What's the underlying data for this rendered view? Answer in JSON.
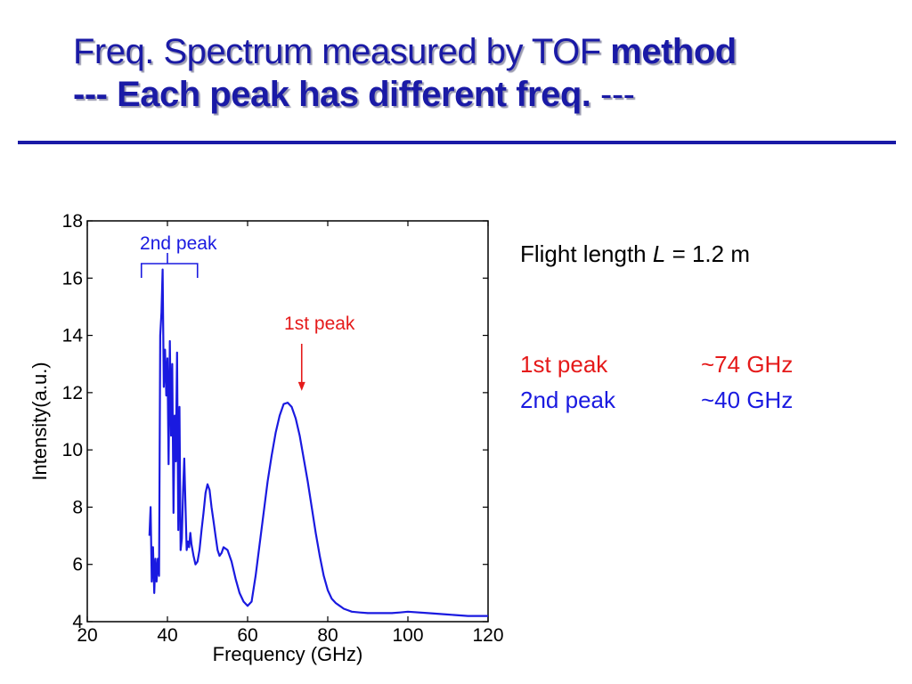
{
  "slide": {
    "title_line1_normal": "Freq. Spectrum measured by TOF ",
    "title_line1_bold": "method",
    "title_line2_bold": "--- Each peak has different freq.",
    "title_line2_normal": " ---",
    "rule_color": "#1a1aa6"
  },
  "info": {
    "flight_prefix": "Flight length ",
    "flight_var": "L",
    "flight_value": " = 1.2 m",
    "peak1_label": "1st peak",
    "peak1_value": "~74 GHz",
    "peak1_color": "#e51a1a",
    "peak2_label": "2nd peak",
    "peak2_value": "~40 GHz",
    "peak2_color": "#1a1ae0"
  },
  "chart_data": {
    "type": "line",
    "xlabel": "Frequency (GHz)",
    "ylabel": "Intensity(a.u.)",
    "xlim": [
      20,
      120
    ],
    "ylim": [
      4,
      18
    ],
    "xticks": [
      20,
      40,
      60,
      80,
      100,
      120
    ],
    "yticks": [
      4,
      6,
      8,
      10,
      12,
      14,
      16,
      18
    ],
    "grid": false,
    "series": [
      {
        "color": "#1a1ae0",
        "x": [
          35.5,
          35.8,
          36.1,
          36.4,
          36.7,
          37.0,
          37.3,
          37.6,
          37.9,
          38.2,
          38.5,
          38.8,
          39.1,
          39.4,
          39.7,
          40.0,
          40.3,
          40.6,
          40.9,
          41.2,
          41.5,
          41.8,
          42.1,
          42.4,
          42.7,
          43.0,
          43.3,
          43.6,
          43.9,
          44.2,
          44.5,
          44.8,
          45.1,
          45.4,
          45.7,
          46.0,
          46.5,
          47.0,
          47.5,
          48.0,
          48.5,
          49.0,
          49.5,
          50.0,
          50.5,
          51.0,
          51.5,
          52.0,
          52.5,
          53.0,
          53.5,
          54.0,
          55.0,
          56.0,
          57.0,
          58.0,
          59.0,
          60.0,
          61.0,
          62.0,
          63.0,
          64.0,
          65.0,
          66.0,
          67.0,
          68.0,
          69.0,
          70.0,
          71.0,
          72.0,
          73.0,
          74.0,
          75.0,
          76.0,
          77.0,
          78.0,
          79.0,
          80.0,
          81.0,
          82.0,
          83.0,
          84.0,
          85.0,
          86.0,
          88.0,
          90.0,
          92.0,
          94.0,
          96.0,
          98.0,
          100.0,
          105.0,
          110.0,
          115.0,
          120.0
        ],
        "y": [
          7.0,
          8.0,
          5.4,
          6.6,
          5.0,
          6.2,
          5.4,
          6.2,
          5.6,
          14.0,
          14.8,
          16.3,
          12.2,
          13.5,
          11.9,
          13.2,
          9.5,
          13.8,
          10.5,
          13.0,
          7.8,
          11.2,
          9.6,
          13.4,
          7.2,
          11.5,
          6.5,
          6.9,
          8.6,
          9.7,
          8.0,
          6.5,
          6.8,
          6.6,
          7.1,
          6.7,
          6.3,
          6.0,
          6.1,
          6.5,
          7.2,
          7.8,
          8.5,
          8.8,
          8.6,
          8.0,
          7.5,
          7.0,
          6.5,
          6.3,
          6.4,
          6.6,
          6.5,
          6.1,
          5.5,
          5.0,
          4.7,
          4.55,
          4.7,
          5.6,
          6.7,
          7.8,
          8.9,
          9.8,
          10.6,
          11.2,
          11.6,
          11.65,
          11.5,
          11.1,
          10.5,
          9.7,
          8.9,
          8.0,
          7.1,
          6.3,
          5.6,
          5.1,
          4.8,
          4.65,
          4.55,
          4.45,
          4.4,
          4.35,
          4.32,
          4.3,
          4.3,
          4.3,
          4.3,
          4.32,
          4.35,
          4.3,
          4.25,
          4.2,
          4.2
        ]
      }
    ],
    "annotations": [
      {
        "text": "2nd peak",
        "color": "#1a1ae0",
        "kind": "bracket",
        "x_from": 33.5,
        "x_to": 47.5,
        "at": 40
      },
      {
        "text": "1st peak",
        "color": "#e51a1a",
        "kind": "arrow",
        "x": 73.5,
        "y": 12
      }
    ]
  }
}
